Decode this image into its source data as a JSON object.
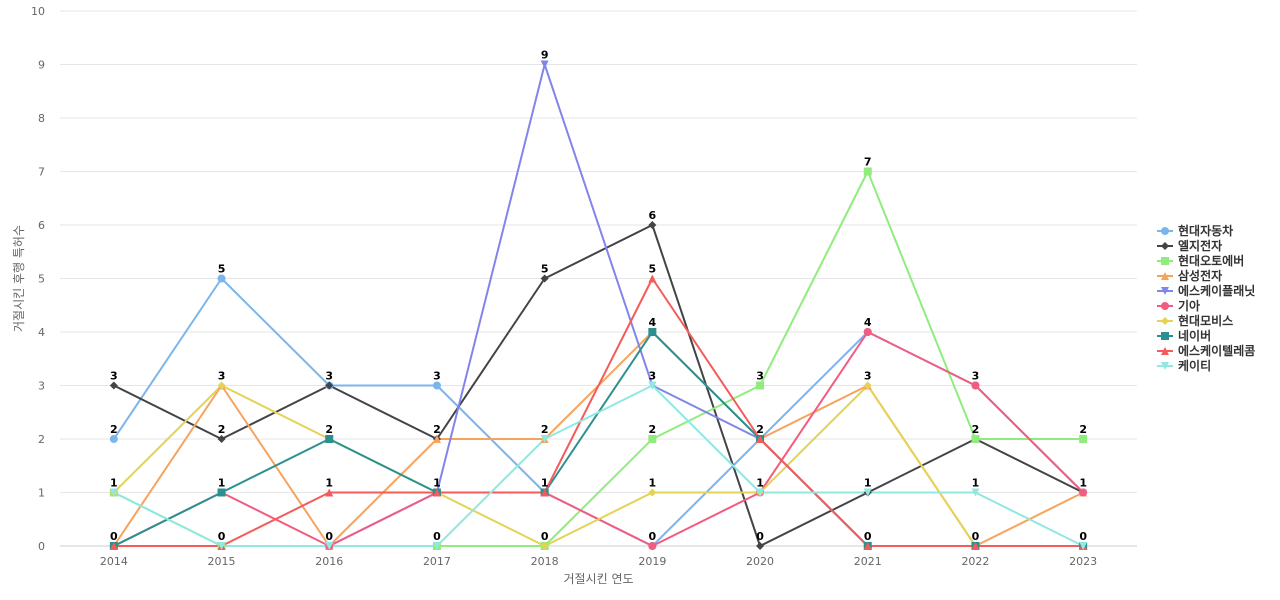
{
  "chart_data": {
    "type": "line",
    "xlabel": "거절시킨 연도",
    "ylabel": "거절시킨 후행 특허수",
    "ylim": [
      0,
      10
    ],
    "yticks": [
      0,
      1,
      2,
      3,
      4,
      5,
      6,
      7,
      8,
      9,
      10
    ],
    "categories": [
      "2014",
      "2015",
      "2016",
      "2017",
      "2018",
      "2019",
      "2020",
      "2021",
      "2022",
      "2023"
    ],
    "grid": true,
    "legend_position": "right",
    "series": [
      {
        "name": "현대자동차",
        "color": "#7cb5ec",
        "marker": "circle",
        "values": [
          2,
          5,
          3,
          3,
          1,
          0,
          2,
          4,
          3,
          1
        ],
        "show_labels": true
      },
      {
        "name": "엘지전자",
        "color": "#434348",
        "marker": "diamond",
        "values": [
          3,
          2,
          3,
          2,
          5,
          6,
          0,
          1,
          2,
          1
        ],
        "show_labels": true
      },
      {
        "name": "현대오토에버",
        "color": "#90ed7d",
        "marker": "square",
        "values": [
          1,
          0,
          0,
          0,
          0,
          2,
          3,
          7,
          2,
          2
        ],
        "show_labels": true
      },
      {
        "name": "삼성전자",
        "color": "#f7a35c",
        "marker": "triangle",
        "values": [
          0,
          3,
          0,
          2,
          2,
          4,
          2,
          3,
          0,
          1
        ],
        "show_labels": false
      },
      {
        "name": "에스케이플래닛",
        "color": "#8085e9",
        "marker": "triangle-down",
        "values": [
          0,
          0,
          0,
          1,
          9,
          3,
          2,
          0,
          0,
          0
        ],
        "show_labels": true
      },
      {
        "name": "기아",
        "color": "#f15c80",
        "marker": "circle",
        "values": [
          0,
          1,
          0,
          1,
          1,
          0,
          1,
          4,
          3,
          1
        ],
        "show_labels": false
      },
      {
        "name": "현대모비스",
        "color": "#e4d354",
        "marker": "diamond",
        "values": [
          1,
          3,
          2,
          1,
          0,
          1,
          1,
          3,
          0,
          0
        ],
        "show_labels": false
      },
      {
        "name": "네이버",
        "color": "#2b908f",
        "marker": "square",
        "values": [
          0,
          1,
          2,
          1,
          1,
          4,
          2,
          0,
          0,
          0
        ],
        "show_labels": false
      },
      {
        "name": "에스케이텔레콤",
        "color": "#f45b5b",
        "marker": "triangle",
        "values": [
          0,
          0,
          1,
          1,
          1,
          5,
          2,
          0,
          0,
          0
        ],
        "show_labels": false
      },
      {
        "name": "케이티",
        "color": "#91e8e1",
        "marker": "triangle-down",
        "values": [
          1,
          0,
          0,
          0,
          2,
          3,
          1,
          1,
          1,
          0
        ],
        "show_labels": false
      }
    ],
    "data_labels": [
      {
        "x": "2014",
        "y": 3,
        "text": "3"
      },
      {
        "x": "2014",
        "y": 2,
        "text": "2"
      },
      {
        "x": "2014",
        "y": 1,
        "text": "1"
      },
      {
        "x": "2014",
        "y": 0,
        "text": "0"
      },
      {
        "x": "2015",
        "y": 5,
        "text": "5"
      },
      {
        "x": "2015",
        "y": 3,
        "text": "3"
      },
      {
        "x": "2015",
        "y": 2,
        "text": "2"
      },
      {
        "x": "2015",
        "y": 1,
        "text": "1"
      },
      {
        "x": "2015",
        "y": 0,
        "text": "0"
      },
      {
        "x": "2016",
        "y": 3,
        "text": "3"
      },
      {
        "x": "2016",
        "y": 2,
        "text": "2"
      },
      {
        "x": "2016",
        "y": 1,
        "text": "1"
      },
      {
        "x": "2016",
        "y": 0,
        "text": "0"
      },
      {
        "x": "2017",
        "y": 3,
        "text": "3"
      },
      {
        "x": "2017",
        "y": 2,
        "text": "2"
      },
      {
        "x": "2017",
        "y": 1,
        "text": "1"
      },
      {
        "x": "2017",
        "y": 0,
        "text": "0"
      },
      {
        "x": "2018",
        "y": 9,
        "text": "9"
      },
      {
        "x": "2018",
        "y": 5,
        "text": "5"
      },
      {
        "x": "2018",
        "y": 2,
        "text": "2"
      },
      {
        "x": "2018",
        "y": 1,
        "text": "1"
      },
      {
        "x": "2018",
        "y": 0,
        "text": "0"
      },
      {
        "x": "2019",
        "y": 6,
        "text": "6"
      },
      {
        "x": "2019",
        "y": 5,
        "text": "5"
      },
      {
        "x": "2019",
        "y": 4,
        "text": "4"
      },
      {
        "x": "2019",
        "y": 3,
        "text": "3"
      },
      {
        "x": "2019",
        "y": 2,
        "text": "2"
      },
      {
        "x": "2019",
        "y": 1,
        "text": "1"
      },
      {
        "x": "2019",
        "y": 0,
        "text": "0"
      },
      {
        "x": "2020",
        "y": 3,
        "text": "3"
      },
      {
        "x": "2020",
        "y": 2,
        "text": "2"
      },
      {
        "x": "2020",
        "y": 1,
        "text": "1"
      },
      {
        "x": "2020",
        "y": 0,
        "text": "0"
      },
      {
        "x": "2021",
        "y": 7,
        "text": "7"
      },
      {
        "x": "2021",
        "y": 4,
        "text": "4"
      },
      {
        "x": "2021",
        "y": 3,
        "text": "3"
      },
      {
        "x": "2021",
        "y": 1,
        "text": "1"
      },
      {
        "x": "2021",
        "y": 0,
        "text": "0"
      },
      {
        "x": "2022",
        "y": 3,
        "text": "3"
      },
      {
        "x": "2022",
        "y": 2,
        "text": "2"
      },
      {
        "x": "2022",
        "y": 1,
        "text": "1"
      },
      {
        "x": "2022",
        "y": 0,
        "text": "0"
      },
      {
        "x": "2023",
        "y": 2,
        "text": "2"
      },
      {
        "x": "2023",
        "y": 1,
        "text": "1"
      },
      {
        "x": "2023",
        "y": 0,
        "text": "0"
      }
    ]
  }
}
